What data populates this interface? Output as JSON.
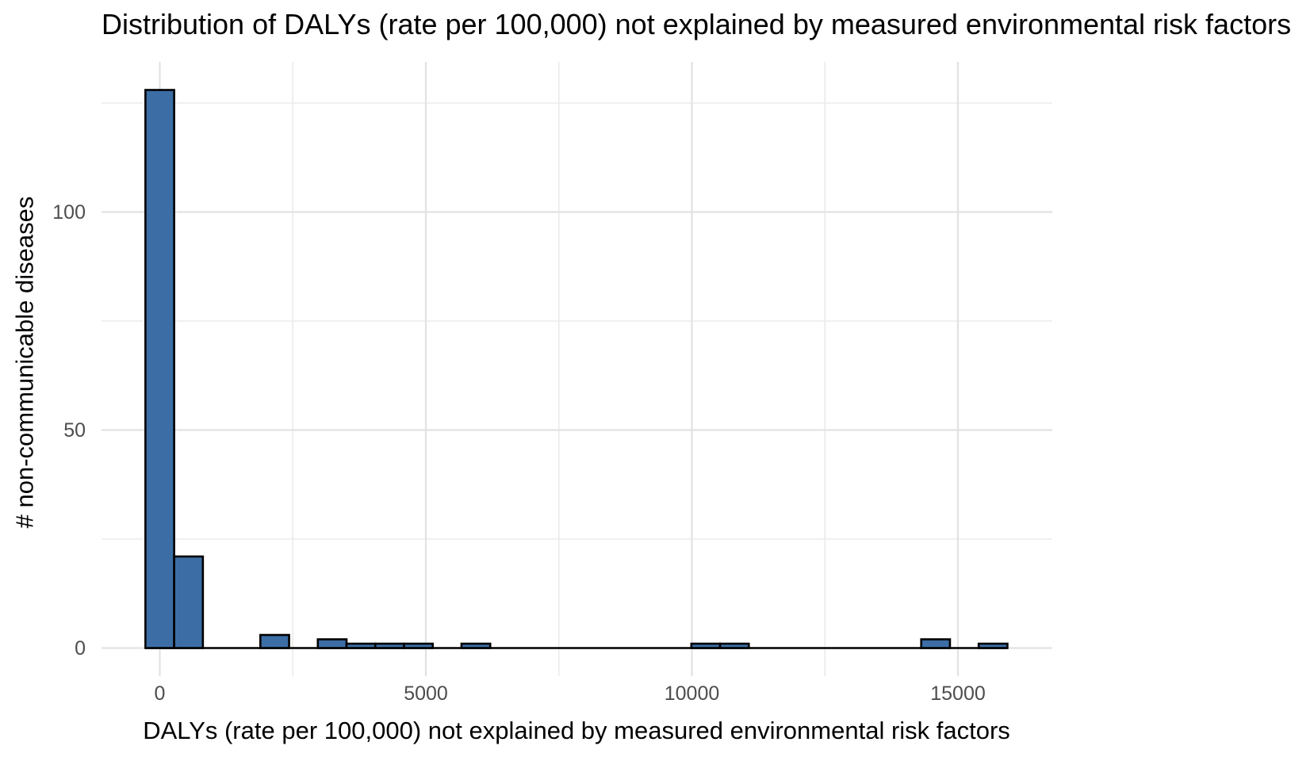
{
  "figure": {
    "title": "Distribution of DALYs (rate per 100,000) not explained by measured environmental risk factors",
    "x_axis_label": "DALYs (rate per 100,000) not explained by measured environmental risk factors",
    "y_axis_label": "# non-communicable diseases"
  },
  "colors": {
    "background": "#ffffff",
    "bar_fill": "#3c6ea5",
    "bar_stroke": "#000000",
    "grid_major": "#e2e2e2",
    "grid_minor": "#ebebeb",
    "tick_label_color": "#4d4d4d",
    "title_color": "#000000"
  },
  "chart_data": {
    "type": "bar",
    "subtype": "histogram",
    "title": "Distribution of DALYs (rate per 100,000) not explained by measured environmental risk factors",
    "xlabel": "DALYs (rate per 100,000) not explained by measured environmental risk factors",
    "ylabel": "# non-communicable diseases",
    "x_ticks": [
      0,
      5000,
      10000,
      15000
    ],
    "x_tick_labels": [
      "0",
      "5000",
      "10000",
      "15000"
    ],
    "x_minor_gridlines": [
      2500,
      7500,
      12500
    ],
    "y_ticks": [
      0,
      50,
      100
    ],
    "y_tick_labels": [
      "0",
      "50",
      "100"
    ],
    "y_minor_gridlines": [
      25,
      75,
      125
    ],
    "xlim": [
      -1080,
      16740
    ],
    "ylim": [
      -6.4,
      134.4
    ],
    "grid": true,
    "legend": false,
    "bin_width": 540,
    "bins": [
      {
        "center": 0,
        "count": 128
      },
      {
        "center": 540,
        "count": 21
      },
      {
        "center": 2160,
        "count": 3
      },
      {
        "center": 3240,
        "count": 2
      },
      {
        "center": 3780,
        "count": 1
      },
      {
        "center": 4320,
        "count": 1
      },
      {
        "center": 4860,
        "count": 1
      },
      {
        "center": 5940,
        "count": 1
      },
      {
        "center": 10260,
        "count": 1
      },
      {
        "center": 10800,
        "count": 1
      },
      {
        "center": 14580,
        "count": 2
      },
      {
        "center": 15660,
        "count": 1
      }
    ]
  }
}
